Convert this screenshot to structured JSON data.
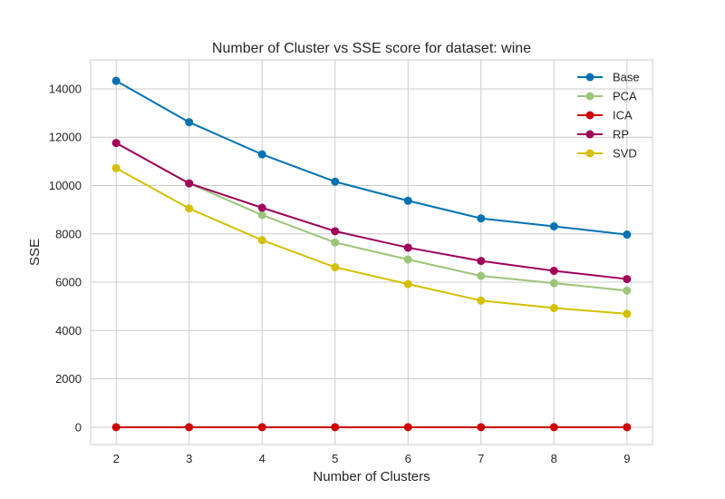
{
  "chart_data": {
    "type": "line",
    "title": "Number of Cluster vs SSE score for dataset: wine",
    "xlabel": "Number of Clusters",
    "ylabel": "SSE",
    "x": [
      2,
      3,
      4,
      5,
      6,
      7,
      8,
      9
    ],
    "xlim": [
      1.65,
      9.35
    ],
    "ylim": [
      -720,
      15200
    ],
    "yticks": [
      0,
      2000,
      4000,
      6000,
      8000,
      10000,
      12000,
      14000
    ],
    "grid": true,
    "legend_position": "top-right",
    "series": [
      {
        "name": "Base",
        "color": "#0072B2",
        "values": [
          14330,
          12620,
          11290,
          10160,
          9370,
          8640,
          8310,
          7970
        ]
      },
      {
        "name": "PCA",
        "color": "#9CC579",
        "values": [
          11760,
          10090,
          8780,
          7640,
          6940,
          6260,
          5960,
          5650
        ]
      },
      {
        "name": "ICA",
        "color": "#CC0000",
        "values": [
          0,
          0,
          0,
          0,
          0,
          0,
          0,
          0
        ]
      },
      {
        "name": "RP",
        "color": "#A0005A",
        "values": [
          11760,
          10090,
          9080,
          8110,
          7430,
          6880,
          6470,
          6130
        ]
      },
      {
        "name": "SVD",
        "color": "#D4C000",
        "values": [
          10720,
          9050,
          7740,
          6620,
          5920,
          5240,
          4930,
          4690
        ]
      }
    ]
  }
}
